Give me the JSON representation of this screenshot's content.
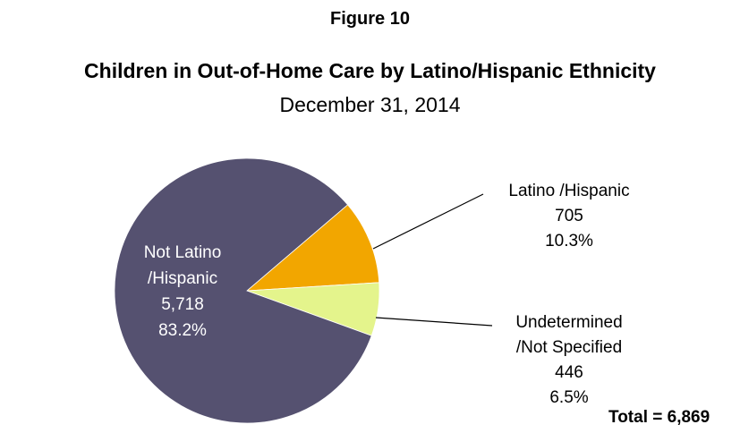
{
  "figure_label": "Figure 10",
  "chart_data": {
    "type": "pie",
    "title": "Children in Out-of-Home Care by Latino/Hispanic Ethnicity",
    "subtitle": "December 31, 2014",
    "slices": [
      {
        "name_lines": [
          "Latino /Hispanic"
        ],
        "count": "705",
        "percent": "10.3%",
        "value": 705,
        "color": "#f2a600"
      },
      {
        "name_lines": [
          "Undetermined",
          "/Not Specified"
        ],
        "count": "446",
        "percent": "6.5%",
        "value": 446,
        "color": "#e4f48c"
      },
      {
        "name_lines": [
          "Not Latino",
          "/Hispanic"
        ],
        "count": "5,718",
        "percent": "83.2%",
        "value": 5718,
        "color": "#555170"
      }
    ],
    "total_label": "Total = 6,869"
  }
}
